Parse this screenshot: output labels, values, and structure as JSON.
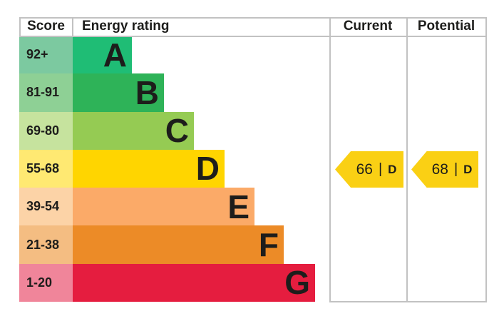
{
  "header": {
    "score": "Score",
    "energy_rating": "Energy rating",
    "current": "Current",
    "potential": "Potential"
  },
  "chart_data": {
    "type": "bar",
    "title": "EPC energy efficiency rating chart",
    "bands": [
      {
        "letter": "A",
        "score_range": "92+",
        "color": "#1fbd75",
        "tint": "#7cc9a0"
      },
      {
        "letter": "B",
        "score_range": "81-91",
        "color": "#2eb358",
        "tint": "#8ed095"
      },
      {
        "letter": "C",
        "score_range": "69-80",
        "color": "#95cb53",
        "tint": "#c6e39e"
      },
      {
        "letter": "D",
        "score_range": "55-68",
        "color": "#ffd500",
        "tint": "#ffe972"
      },
      {
        "letter": "E",
        "score_range": "39-54",
        "color": "#fbaa68",
        "tint": "#fcd3a7"
      },
      {
        "letter": "F",
        "score_range": "21-38",
        "color": "#ec8b27",
        "tint": "#f4bd82"
      },
      {
        "letter": "G",
        "score_range": "1-20",
        "color": "#e51d3f",
        "tint": "#f0859a"
      }
    ],
    "current": {
      "value": "66",
      "rating": "D",
      "arrow_color": "#fad014"
    },
    "potential": {
      "value": "68",
      "rating": "D",
      "arrow_color": "#fad014"
    },
    "separator": "|",
    "legend_position": "none",
    "grid": "off"
  },
  "colors": {
    "background": "#ffffff",
    "border": "#c2c2c2",
    "text": "#1d1d1b"
  }
}
